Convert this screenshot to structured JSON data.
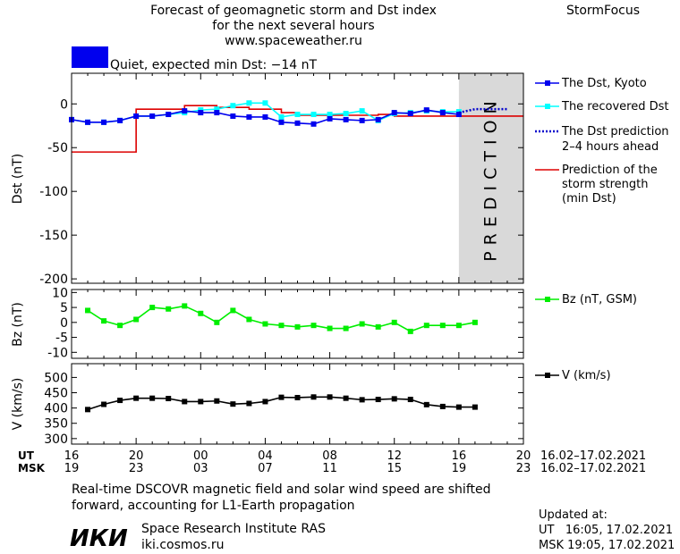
{
  "header": {
    "title_lines": [
      "Forecast of geomagnetic storm and Dst index",
      "for the next several hours",
      "www.spaceweather.ru"
    ],
    "brand": "StormFocus",
    "status_text": "Quiet, expected min Dst: −14 nT"
  },
  "colors": {
    "status_box": "#0000ee",
    "dst_kyoto": "#0000ee",
    "dst_recovered": "#00ffff",
    "dst_prediction": "#0000cc",
    "storm_strength": "#dd0000",
    "bz": "#00ee00",
    "speed": "#000000",
    "prediction_zone": "#d9d9d9",
    "prediction_text": "#b0b0b0"
  },
  "prediction_label": "PREDICTION",
  "time_axis": {
    "ut_label": "UT",
    "msk_label": "MSK",
    "ut_ticks": [
      "16",
      "20",
      "00",
      "04",
      "08",
      "12",
      "16",
      "20"
    ],
    "msk_ticks": [
      "19",
      "23",
      "03",
      "07",
      "11",
      "15",
      "19",
      "23"
    ],
    "ut_date_range": "16.02–17.02.2021",
    "msk_date_range": "16.02–17.02.2021"
  },
  "legend": {
    "dst_kyoto": "The Dst, Kyoto",
    "dst_recovered": "The recovered Dst",
    "dst_prediction": [
      "The Dst prediction",
      "2–4 hours ahead"
    ],
    "storm_strength": [
      "Prediction of the",
      "storm strength",
      "(min Dst)"
    ],
    "bz": "Bz (nT, GSM)",
    "speed": "V (km/s)"
  },
  "chart_data": [
    {
      "type": "line",
      "panel": "dst",
      "ylabel": "Dst (nT)",
      "ylim": [
        -205,
        35
      ],
      "yticks": [
        0,
        -50,
        -100,
        -150,
        -200
      ],
      "xlim": [
        0,
        28
      ],
      "x_units": "hours since 16:00 UT 16.02.2021",
      "prediction_start": 24,
      "series": [
        {
          "name": "The Dst, Kyoto",
          "style": "line-square",
          "x": [
            0,
            1,
            2,
            3,
            4,
            5,
            6,
            7,
            8,
            9,
            10,
            11,
            12,
            13,
            14,
            15,
            16,
            17,
            18,
            19,
            20,
            21,
            22,
            23,
            24
          ],
          "y": [
            -18,
            -21,
            -21,
            -19,
            -14,
            -14,
            -12,
            -8,
            -10,
            -10,
            -14,
            -15,
            -15,
            -21,
            -22,
            -23,
            -17,
            -18,
            -19,
            -18,
            -10,
            -11,
            -7,
            -10,
            -12
          ]
        },
        {
          "name": "The recovered Dst",
          "style": "line-square",
          "x": [
            0,
            1,
            2,
            3,
            4,
            5,
            6,
            7,
            8,
            9,
            10,
            11,
            12,
            13,
            14,
            15,
            16,
            17,
            18,
            19,
            20,
            21,
            22,
            23,
            24
          ],
          "y": [
            -18,
            -21,
            -21,
            -19,
            -14,
            -14,
            -12,
            -10,
            -7,
            -6,
            -2,
            1,
            1,
            -15,
            -12,
            -12,
            -12,
            -11,
            -8,
            -19,
            -11,
            -10,
            -8,
            -9,
            -9
          ]
        },
        {
          "name": "The Dst prediction 2–4 hours ahead",
          "style": "dotted",
          "x": [
            24,
            25,
            26,
            27
          ],
          "y": [
            -10,
            -6,
            -6,
            -6
          ]
        },
        {
          "name": "Prediction of the storm strength (min Dst)",
          "style": "step",
          "x": [
            0,
            3,
            4,
            6,
            7,
            8,
            9,
            10,
            11,
            13,
            14,
            16,
            19,
            20,
            24,
            28
          ],
          "y": [
            -55,
            -55,
            -6,
            -6,
            -2,
            -2,
            -4,
            -4,
            -6,
            -10,
            -13,
            -13,
            -12,
            -14,
            -14,
            -14
          ]
        }
      ]
    },
    {
      "type": "line",
      "panel": "bz",
      "ylabel": "Bz (nT)",
      "ylim": [
        -12,
        11
      ],
      "yticks": [
        10,
        5,
        0,
        -5,
        -10
      ],
      "xlim": [
        0,
        28
      ],
      "series": [
        {
          "name": "Bz (nT, GSM)",
          "x": [
            1,
            2,
            3,
            4,
            5,
            6,
            7,
            8,
            9,
            10,
            11,
            12,
            13,
            14,
            15,
            16,
            17,
            18,
            19,
            20,
            21,
            22,
            23,
            24,
            25
          ],
          "y": [
            4,
            0.5,
            -1,
            1,
            5,
            4.5,
            5.5,
            3,
            0,
            4,
            1,
            -0.5,
            -1,
            -1.5,
            -1,
            -2,
            -2,
            -0.5,
            -1.5,
            0,
            -3,
            -1,
            -1,
            -1,
            0
          ]
        }
      ]
    },
    {
      "type": "line",
      "panel": "v",
      "ylabel": "V (km/s)",
      "ylim": [
        282,
        545
      ],
      "yticks": [
        500,
        450,
        400,
        350,
        300
      ],
      "xlim": [
        0,
        28
      ],
      "series": [
        {
          "name": "V (km/s)",
          "x": [
            1,
            2,
            3,
            4,
            5,
            6,
            7,
            8,
            9,
            10,
            11,
            12,
            13,
            14,
            15,
            16,
            17,
            18,
            19,
            20,
            21,
            22,
            23,
            24,
            25
          ],
          "y": [
            395,
            412,
            425,
            432,
            432,
            431,
            421,
            421,
            423,
            413,
            415,
            421,
            435,
            434,
            436,
            436,
            432,
            427,
            428,
            430,
            428,
            411,
            405,
            403,
            403
          ]
        }
      ]
    }
  ],
  "footer": {
    "note_lines": [
      "Real-time DSCOVR magnetic field and solar wind speed are shifted",
      "forward, accounting for L1-Earth propagation"
    ],
    "logo_text": "ИКИ",
    "institute": "Space Research Institute RAS",
    "website": "iki.cosmos.ru",
    "updated_label": "Updated at:",
    "updated_ut": "UT   16:05, 17.02.2021",
    "updated_msk": "MSK 19:05, 17.02.2021"
  }
}
